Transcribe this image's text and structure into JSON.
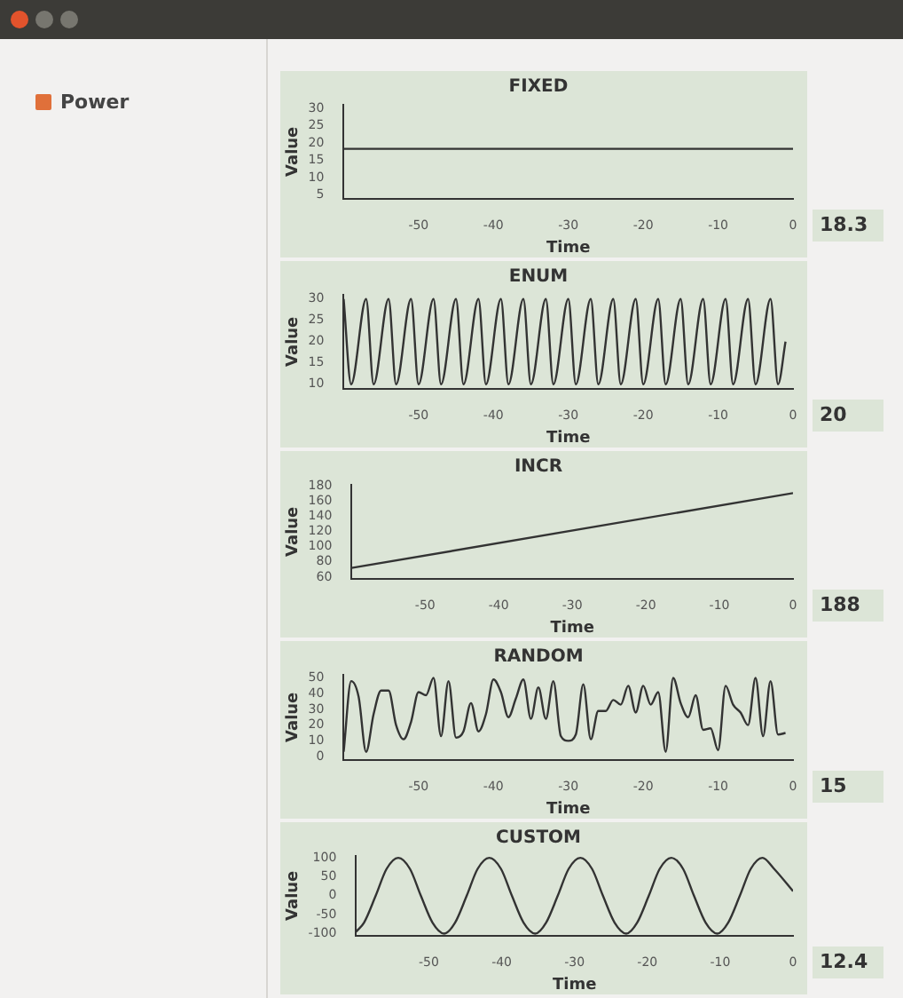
{
  "chart_data": [
    {
      "type": "other",
      "annotations": [
        "Power"
      ]
    },
    {
      "type": "line",
      "title": "FIXED",
      "xlabel": "Time",
      "ylabel": "Value",
      "color": "#333333",
      "marker": "none",
      "grid": false,
      "xlim": [
        -60,
        0
      ],
      "xticks": [
        -50,
        -40,
        -30,
        -20,
        -10,
        0
      ],
      "ylim": [
        4,
        31
      ],
      "yticks": [
        5,
        10,
        15,
        20,
        25,
        30
      ],
      "x": [
        -60,
        0
      ],
      "values": [
        18.3,
        18.3
      ],
      "annotations": [
        "18.3"
      ]
    },
    {
      "type": "line",
      "title": "ENUM",
      "xlabel": "Time",
      "ylabel": "Value",
      "color": "#333333",
      "marker": "none",
      "grid": false,
      "xlim": [
        -60,
        0
      ],
      "xticks": [
        -50,
        -40,
        -30,
        -20,
        -10,
        0
      ],
      "ylim": [
        9,
        31
      ],
      "yticks": [
        10,
        15,
        20,
        25,
        30
      ],
      "x": [
        -60,
        -59,
        -57,
        -56,
        -54,
        -53,
        -51,
        -50,
        -48,
        -47,
        -45,
        -44,
        -42,
        -41,
        -39,
        -38,
        -36,
        -35,
        -33,
        -32,
        -30,
        -29,
        -27,
        -26,
        -24,
        -23,
        -21,
        -20,
        -18,
        -17,
        -15,
        -14,
        -12,
        -11,
        -9,
        -8,
        -6,
        -5,
        -3,
        -2,
        -1
      ],
      "values": [
        30,
        10,
        30,
        10,
        30,
        10,
        30,
        10,
        30,
        10,
        30,
        10,
        30,
        10,
        30,
        10,
        30,
        10,
        30,
        10,
        30,
        10,
        30,
        10,
        30,
        10,
        30,
        10,
        30,
        10,
        30,
        10,
        30,
        10,
        30,
        10,
        30,
        10,
        30,
        10,
        20
      ],
      "annotations": [
        "20"
      ]
    },
    {
      "type": "line",
      "title": "INCR",
      "xlabel": "Time",
      "ylabel": "Value",
      "color": "#333333",
      "marker": "none",
      "grid": false,
      "xlim": [
        -60,
        0
      ],
      "xticks": [
        -50,
        -40,
        -30,
        -20,
        -10,
        0
      ],
      "ylim": [
        58,
        182
      ],
      "yticks": [
        60,
        80,
        100,
        120,
        140,
        160,
        180
      ],
      "x": [
        -60,
        0
      ],
      "values": [
        72,
        171
      ],
      "annotations": [
        "188"
      ]
    },
    {
      "type": "line",
      "title": "RANDOM",
      "xlabel": "Time",
      "ylabel": "Value",
      "color": "#333333",
      "marker": "none",
      "grid": false,
      "xlim": [
        -60,
        0
      ],
      "xticks": [
        -50,
        -40,
        -30,
        -20,
        -10,
        0
      ],
      "ylim": [
        -2,
        52
      ],
      "yticks": [
        0,
        10,
        20,
        30,
        40,
        50
      ],
      "x": [
        -60,
        -59,
        -58,
        -57,
        -56,
        -55,
        -54,
        -53,
        -52,
        -51,
        -50,
        -49,
        -48,
        -47,
        -46,
        -45,
        -44,
        -43,
        -42,
        -41,
        -40,
        -39,
        -38,
        -37,
        -36,
        -35,
        -34,
        -33,
        -32,
        -31,
        -30,
        -29,
        -28,
        -27,
        -26,
        -25,
        -24,
        -23,
        -22,
        -21,
        -20,
        -19,
        -18,
        -17,
        -16,
        -15,
        -14,
        -13,
        -12,
        -11,
        -10,
        -9,
        -8,
        -7,
        -6,
        -5,
        -4,
        -3,
        -2,
        -1
      ],
      "values": [
        3,
        48,
        38,
        3,
        27,
        42,
        42,
        20,
        11,
        22,
        41,
        39,
        50,
        13,
        48,
        12,
        16,
        34,
        16,
        27,
        49,
        41,
        25,
        37,
        49,
        24,
        44,
        24,
        48,
        13,
        10,
        14,
        46,
        11,
        29,
        29,
        36,
        33,
        45,
        28,
        45,
        33,
        41,
        3,
        50,
        34,
        25,
        39,
        17,
        18,
        4,
        45,
        33,
        28,
        20,
        50,
        13,
        48,
        14,
        15
      ],
      "annotations": [
        "15"
      ]
    },
    {
      "type": "line",
      "title": "CUSTOM",
      "xlabel": "Time",
      "ylabel": "Value",
      "color": "#333333",
      "marker": "none",
      "grid": false,
      "xlim": [
        -60,
        0
      ],
      "xticks": [
        -50,
        -40,
        -30,
        -20,
        -10,
        0
      ],
      "ylim": [
        -105,
        105
      ],
      "yticks": [
        -100,
        -50,
        0,
        50,
        100
      ],
      "x": [
        -60,
        -58.9,
        -57.3,
        -55.8,
        -54.2,
        -52.6,
        -51.1,
        -49.5,
        -47.9,
        -46.4,
        -44.8,
        -43.3,
        -41.7,
        -40.1,
        -38.6,
        -37,
        -35.4,
        -33.9,
        -32.3,
        -30.8,
        -29.2,
        -27.6,
        -26.1,
        -24.5,
        -22.9,
        -21.4,
        -19.8,
        -18.3,
        -16.7,
        -15.1,
        -13.6,
        -12,
        -10.4,
        -8.9,
        -7.3,
        -5.8,
        -4.2,
        -2.6,
        0
      ],
      "values": [
        -95,
        -71,
        0,
        71,
        100,
        71,
        0,
        -71,
        -100,
        -71,
        0,
        71,
        100,
        71,
        0,
        -71,
        -100,
        -71,
        0,
        71,
        100,
        71,
        0,
        -71,
        -100,
        -71,
        0,
        71,
        100,
        71,
        0,
        -71,
        -100,
        -71,
        0,
        71,
        100,
        71,
        12
      ],
      "annotations": [
        "12.4"
      ]
    }
  ]
}
